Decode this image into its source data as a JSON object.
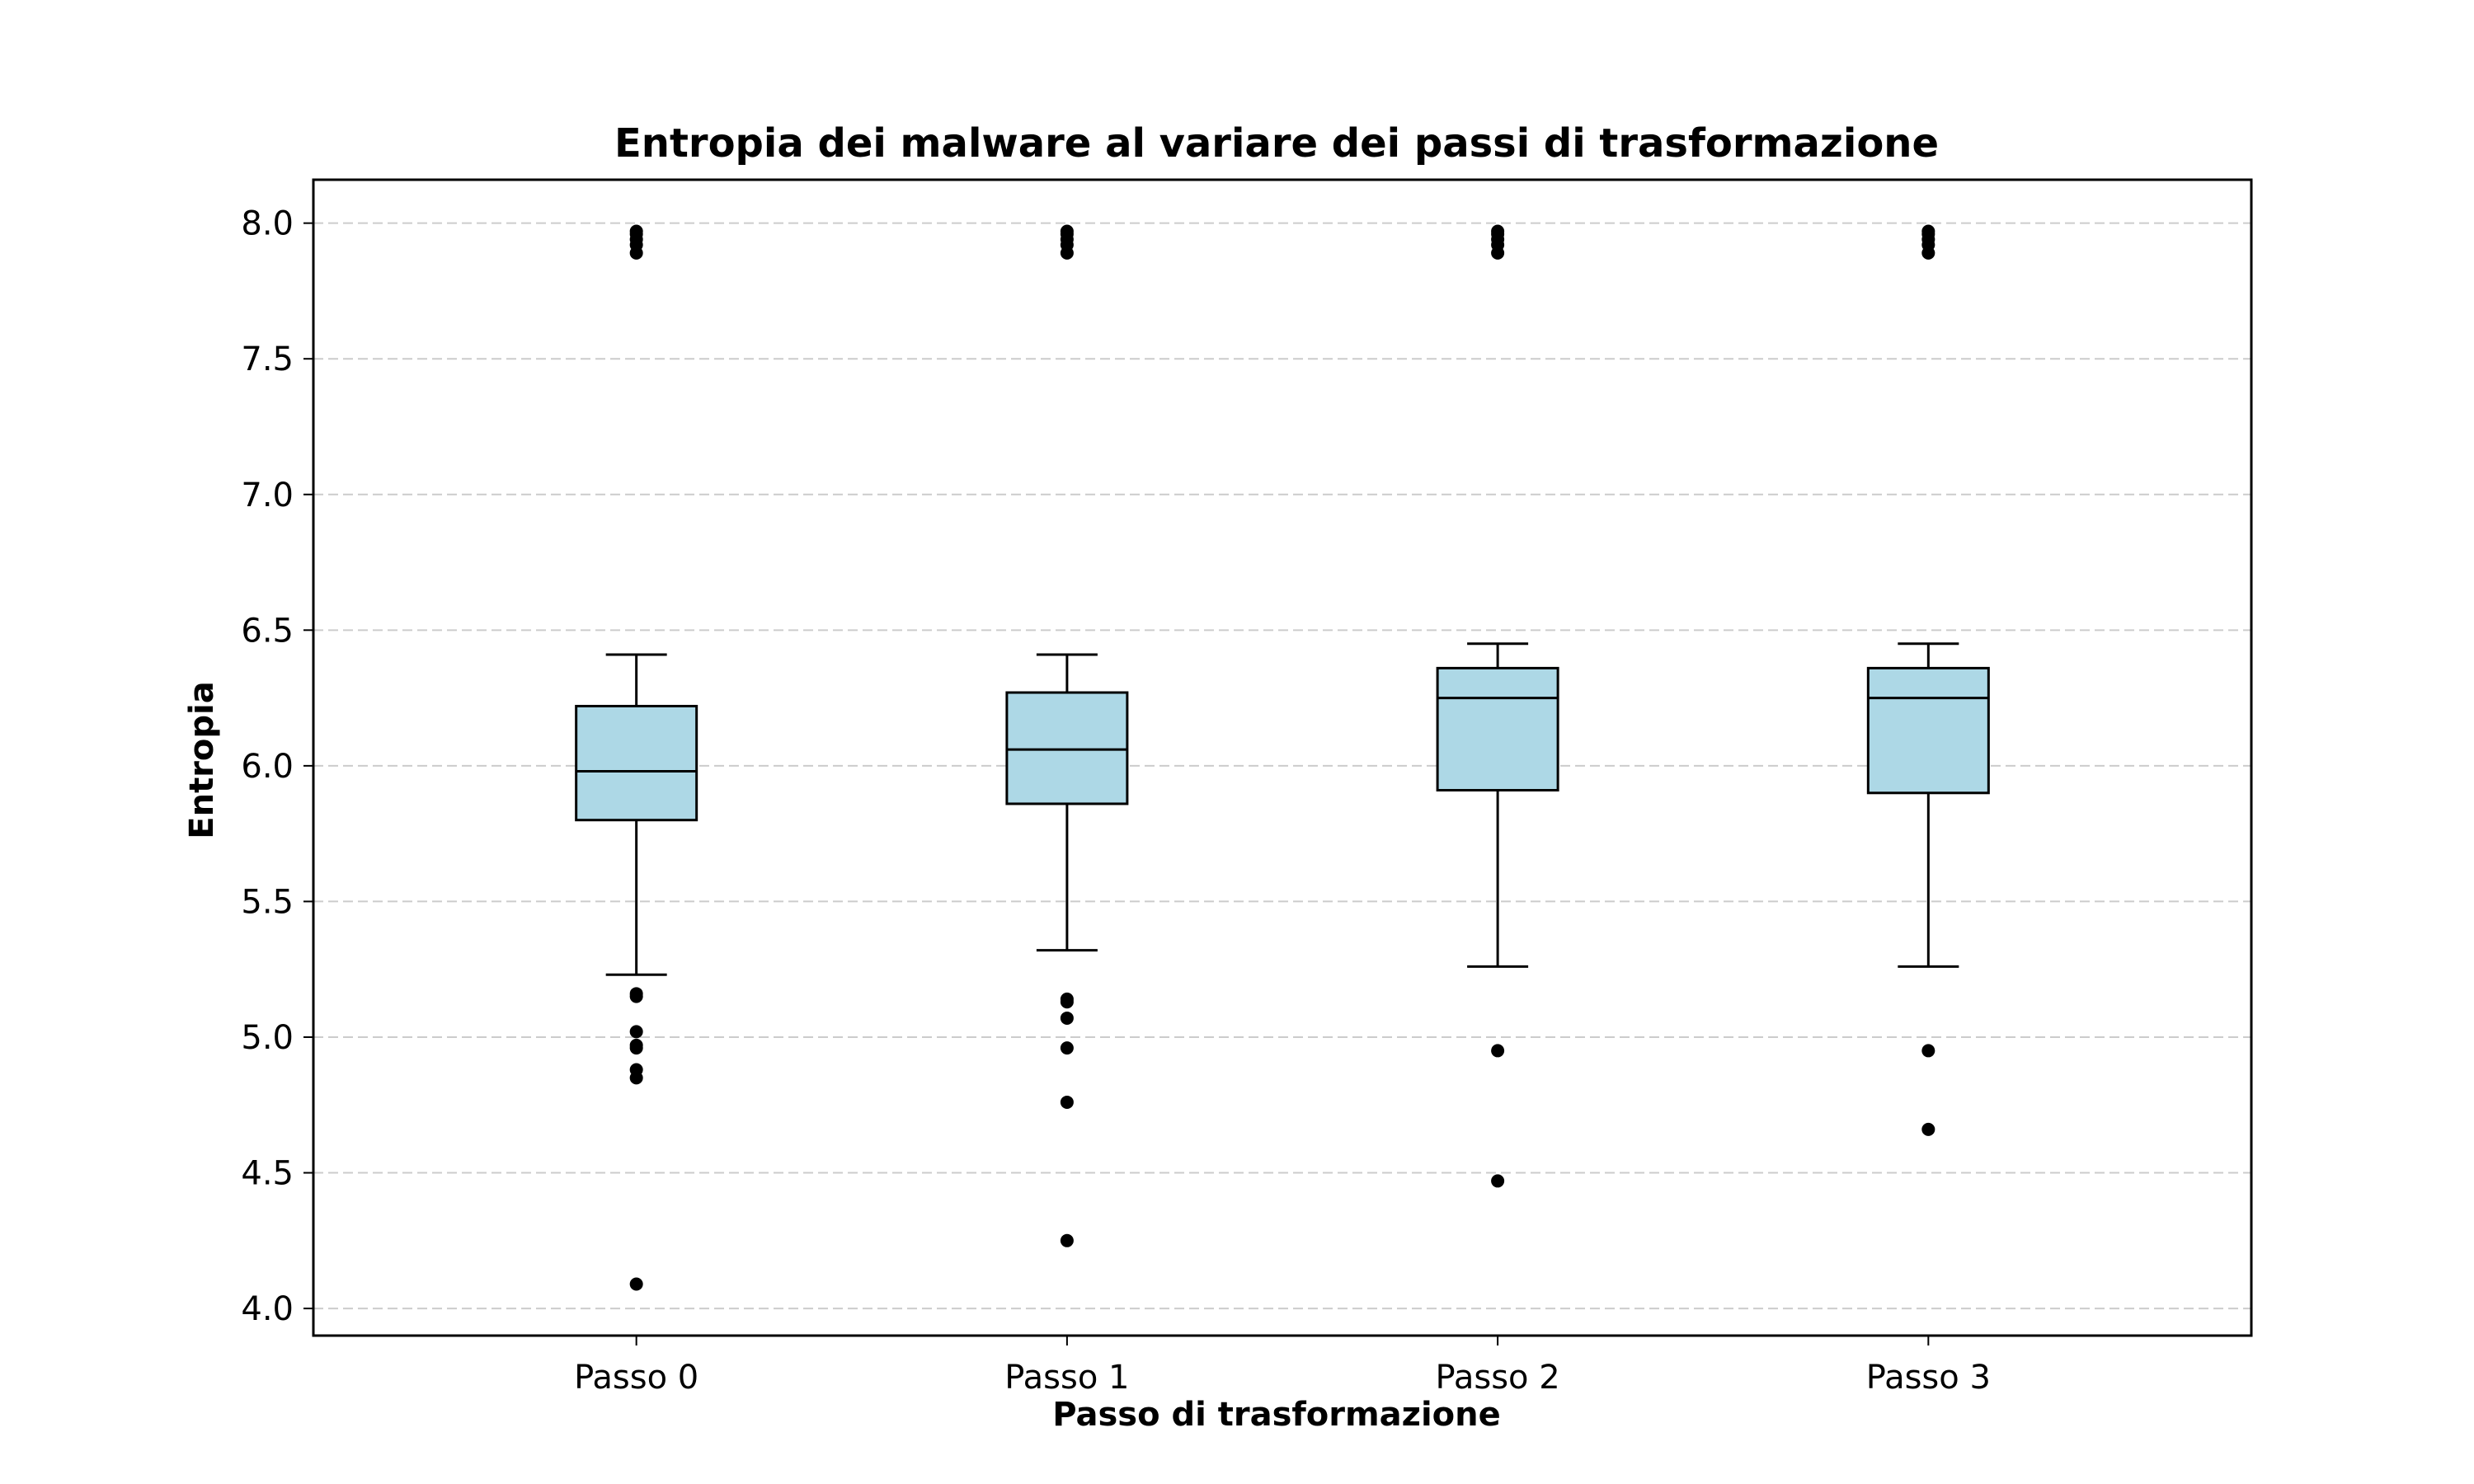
{
  "chart_data": {
    "type": "box",
    "title": "Entropia dei malware al variare dei passi di trasformazione",
    "xlabel": "Passo di trasformazione",
    "ylabel": "Entropia",
    "categories": [
      "Passo 0",
      "Passo 1",
      "Passo 2",
      "Passo 3"
    ],
    "ylim": [
      3.9,
      8.16
    ],
    "yticks": [
      "4.0",
      "4.5",
      "5.0",
      "5.5",
      "6.0",
      "6.5",
      "7.0",
      "7.5",
      "8.0"
    ],
    "grid": "horizontal dashed",
    "box_color": "#add8e6",
    "series": [
      {
        "whisker_low": 5.23,
        "q1": 5.8,
        "median": 5.98,
        "q3": 6.22,
        "whisker_high": 6.41,
        "outliers": [
          7.97,
          7.96,
          7.94,
          7.92,
          7.89,
          5.16,
          5.15,
          5.02,
          4.97,
          4.96,
          4.88,
          4.85,
          4.09
        ]
      },
      {
        "whisker_low": 5.32,
        "q1": 5.86,
        "median": 6.06,
        "q3": 6.27,
        "whisker_high": 6.41,
        "outliers": [
          7.97,
          7.96,
          7.94,
          7.92,
          7.89,
          5.14,
          5.13,
          5.07,
          4.96,
          4.76,
          4.25
        ]
      },
      {
        "whisker_low": 5.26,
        "q1": 5.91,
        "median": 6.25,
        "q3": 6.36,
        "whisker_high": 6.45,
        "outliers": [
          7.97,
          7.96,
          7.94,
          7.92,
          7.89,
          4.95,
          4.47
        ]
      },
      {
        "whisker_low": 5.26,
        "q1": 5.9,
        "median": 6.25,
        "q3": 6.36,
        "whisker_high": 6.45,
        "outliers": [
          7.97,
          7.96,
          7.94,
          7.92,
          7.89,
          4.95,
          4.66
        ]
      }
    ]
  }
}
